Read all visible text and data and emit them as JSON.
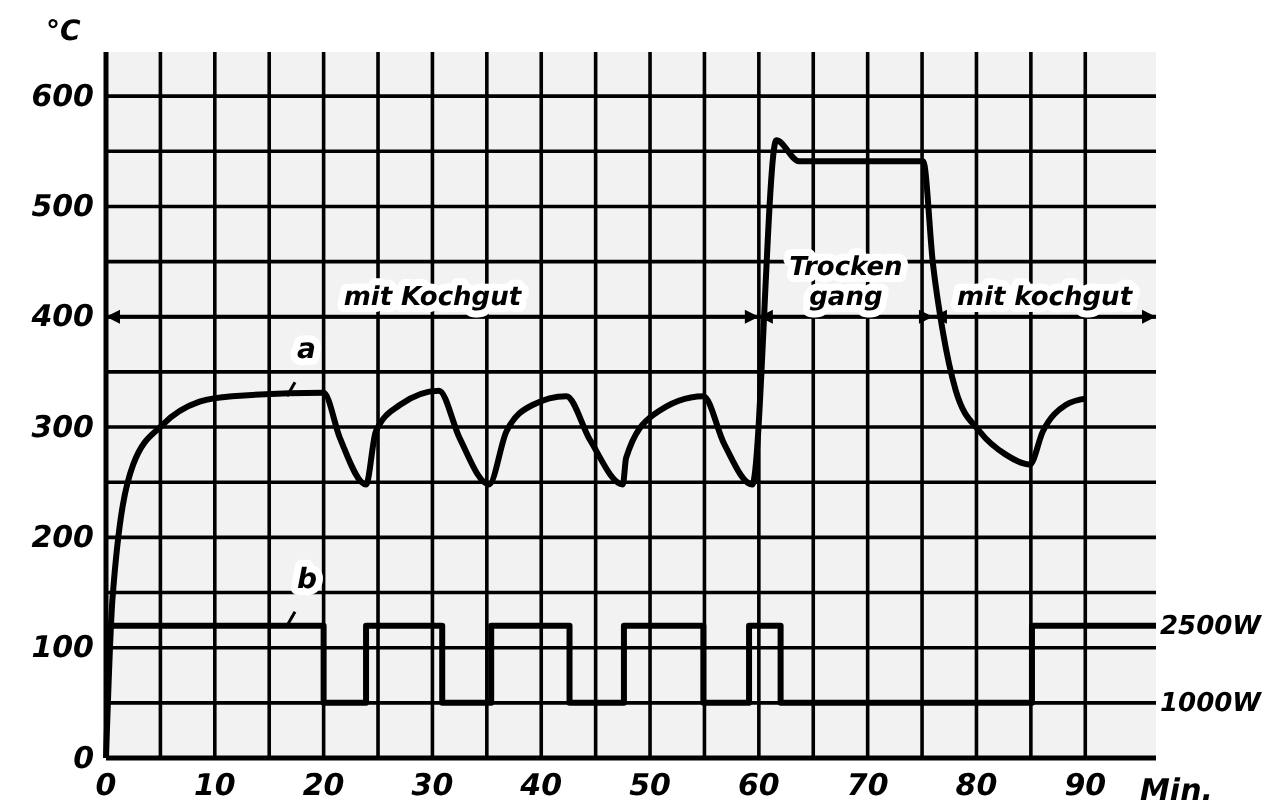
{
  "chart_data": {
    "type": "line",
    "xlabel": "Min.",
    "ylabel": "°C",
    "xlim": [
      0,
      96.5
    ],
    "ylim": [
      0,
      640
    ],
    "y2lim": [
      -71,
      13643
    ],
    "xticks": [
      0,
      {
        "value": 5,
        "label": null
      },
      10,
      {
        "value": 15,
        "label": null
      },
      20,
      {
        "value": 25,
        "label": null
      },
      30,
      {
        "value": 35,
        "label": null
      },
      40,
      {
        "value": 45,
        "label": null
      },
      50,
      {
        "value": 55,
        "label": null
      },
      60,
      {
        "value": 65,
        "label": null
      },
      70,
      {
        "value": 75,
        "label": null
      },
      80,
      {
        "value": 85,
        "label": null
      },
      90
    ],
    "yticks": [
      0,
      {
        "value": 50,
        "label": null
      },
      100,
      {
        "value": 150,
        "label": null
      },
      200,
      {
        "value": 250,
        "label": null
      },
      300,
      {
        "value": 350,
        "label": null
      },
      400,
      {
        "value": 450,
        "label": null
      },
      500,
      {
        "value": 550,
        "label": null
      },
      600
    ],
    "y2ticks": [
      {
        "value": 1000,
        "label": "1000W"
      },
      {
        "value": 2500,
        "label": "2500W"
      }
    ],
    "grid": true,
    "legend": false,
    "marker": "none",
    "line_style": "solid",
    "series": [
      {
        "name": "a",
        "color": "#000000",
        "x": [
          0,
          0.6,
          2.5,
          5.2,
          8.6,
          11.6,
          20,
          21.5,
          23.9,
          24.8,
          27,
          30.6,
          32.5,
          35.2,
          36.8,
          39.2,
          42.3,
          44.5,
          47.5,
          47.8,
          50.3,
          54.9,
          56.8,
          59.4,
          61.6,
          63.7,
          75.1,
          76,
          76.9,
          78.1,
          80.3,
          82.7,
          84.9,
          86.1,
          88.2,
          90.1
        ],
        "values": [
          0,
          145,
          266,
          302,
          323,
          328,
          331,
          290,
          248,
          296,
          320,
          333,
          290,
          248,
          296,
          320,
          328,
          288,
          248,
          272,
          311,
          328,
          285,
          248,
          560,
          541,
          541,
          448,
          387,
          333,
          296,
          275,
          266,
          296,
          320,
          326
        ]
      },
      {
        "name": "b",
        "type": "step",
        "axis": "y2",
        "color": "#000000",
        "x": [
          0,
          20,
          23.9,
          30.9,
          35.4,
          42.6,
          47.6,
          54.9,
          59.1,
          62,
          85.1,
          96.5
        ],
        "values": [
          2500,
          1000,
          2500,
          1000,
          2500,
          1000,
          2500,
          1000,
          2500,
          1000,
          2500,
          2500
        ]
      }
    ],
    "bands": [
      {
        "axis": "x",
        "from": 0,
        "to": 60,
        "label": "mit Kochgut",
        "color": "#f2f2f2"
      },
      {
        "axis": "x",
        "from": 60,
        "to": 76,
        "label": "Trocken gang",
        "color": "#f2f2f2"
      },
      {
        "axis": "x",
        "from": 76,
        "to": 96.5,
        "label": "mit kochgut",
        "color": "#f2f2f2"
      }
    ]
  }
}
